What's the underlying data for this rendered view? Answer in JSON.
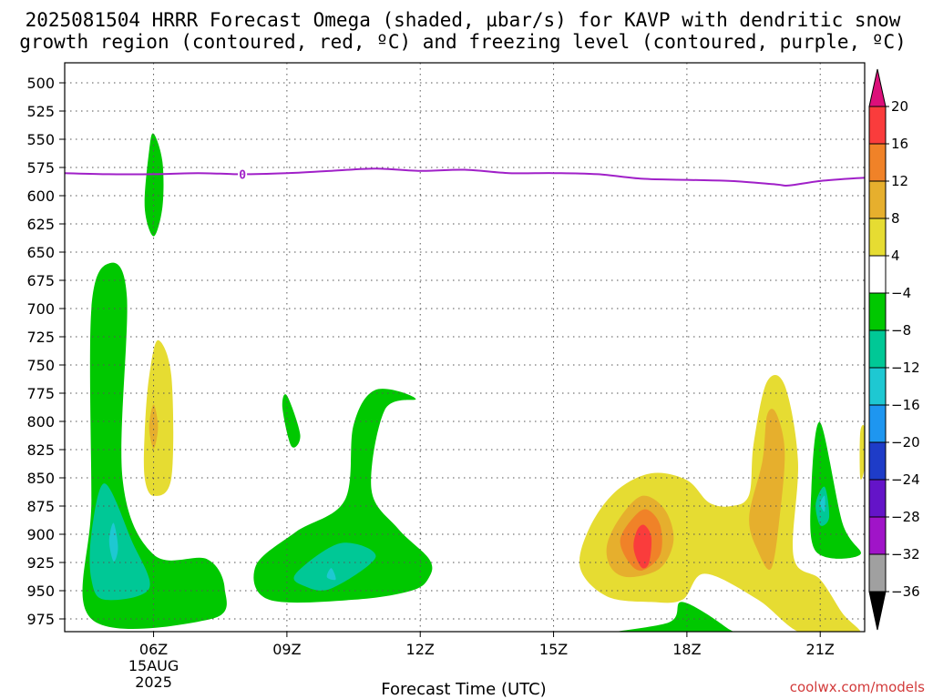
{
  "chart_data": {
    "type": "contour",
    "title_line1": "2025081504 HRRR Forecast Omega (shaded, µbar/s) for KAVP with dendritic snow",
    "title_line2": "growth region (contoured, red, ºC) and freezing level (contoured, purple, ºC)",
    "xlabel": "Forecast Time (UTC)",
    "x_ticks": [
      {
        "hour": 6,
        "label": "06Z",
        "sub1": "15AUG",
        "sub2": "2025"
      },
      {
        "hour": 9,
        "label": "09Z"
      },
      {
        "hour": 12,
        "label": "12Z"
      },
      {
        "hour": 15,
        "label": "15Z"
      },
      {
        "hour": 18,
        "label": "18Z"
      },
      {
        "hour": 21,
        "label": "21Z"
      }
    ],
    "xlim_hours": [
      4,
      22
    ],
    "y_ticks": [
      500,
      525,
      550,
      575,
      600,
      625,
      650,
      675,
      700,
      725,
      750,
      775,
      800,
      825,
      850,
      875,
      900,
      925,
      950,
      975
    ],
    "ylim_hpa": [
      487,
      990
    ],
    "grid": true,
    "freezing_level": {
      "label": "0",
      "hours": [
        4,
        5,
        6,
        7,
        8,
        9,
        10,
        11,
        12,
        13,
        14,
        15,
        16,
        17,
        18,
        19,
        20,
        20.3,
        21,
        22
      ],
      "pressure_hpa": [
        580,
        581,
        581,
        580,
        581,
        580,
        578,
        576,
        578,
        577,
        580,
        580,
        581,
        585,
        586,
        587,
        590,
        591,
        587,
        584
      ]
    },
    "omega_regions": [
      {
        "name": "green",
        "value_range": [
          -8,
          -4
        ],
        "color": "#00c800",
        "pts": [
          [
            4.6,
            975
          ],
          [
            4.6,
            870
          ],
          [
            4.6,
            700
          ],
          [
            5.0,
            660
          ],
          [
            5.4,
            690
          ],
          [
            5.3,
            850
          ],
          [
            6.0,
            918
          ],
          [
            7.2,
            922
          ],
          [
            7.6,
            948
          ],
          [
            7.3,
            975
          ]
        ]
      },
      {
        "name": "green",
        "value_range": [
          -8,
          -4
        ],
        "color": "#00c800",
        "pts": [
          [
            5.9,
            560
          ],
          [
            6.0,
            545
          ],
          [
            6.2,
            570
          ],
          [
            6.2,
            610
          ],
          [
            6.0,
            636
          ],
          [
            5.8,
            610
          ]
        ]
      },
      {
        "name": "green",
        "value_range": [
          -8,
          -4
        ],
        "color": "#00c800",
        "pts": [
          [
            8.9,
            788
          ],
          [
            9.0,
            777
          ],
          [
            9.3,
            812
          ],
          [
            9.1,
            822
          ]
        ]
      },
      {
        "name": "green",
        "value_range": [
          -8,
          -4
        ],
        "color": "#00c800",
        "pts": [
          [
            8.3,
            928
          ],
          [
            9.2,
            898
          ],
          [
            10.3,
            870
          ],
          [
            10.5,
            803
          ],
          [
            11.0,
            772
          ],
          [
            11.9,
            780
          ],
          [
            11.2,
            790
          ],
          [
            10.9,
            860
          ],
          [
            11.5,
            895
          ],
          [
            12.2,
            922
          ],
          [
            12.2,
            938
          ],
          [
            11.8,
            950
          ],
          [
            10.5,
            958
          ],
          [
            8.6,
            958
          ]
        ]
      },
      {
        "name": "green",
        "value_range": [
          -8,
          -4
        ],
        "color": "#00c800",
        "pts": [
          [
            16.0,
            990
          ],
          [
            17.6,
            978
          ],
          [
            17.9,
            960
          ],
          [
            18.9,
            983
          ],
          [
            18.9,
            990
          ]
        ]
      },
      {
        "name": "green",
        "value_range": [
          -8,
          -4
        ],
        "color": "#00c800",
        "pts": [
          [
            20.8,
            860
          ],
          [
            21.0,
            801
          ],
          [
            21.5,
            890
          ],
          [
            21.9,
            918
          ],
          [
            20.9,
            915
          ]
        ]
      },
      {
        "name": "teal",
        "value_range": [
          -12,
          -8
        ],
        "color": "#00c896",
        "pts": [
          [
            4.6,
            900
          ],
          [
            4.9,
            855
          ],
          [
            5.5,
            905
          ],
          [
            5.9,
            948
          ],
          [
            4.9,
            958
          ],
          [
            4.6,
            940
          ]
        ]
      },
      {
        "name": "teal",
        "value_range": [
          -12,
          -8
        ],
        "color": "#00c896",
        "pts": [
          [
            9.2,
            935
          ],
          [
            10.2,
            908
          ],
          [
            11.0,
            920
          ],
          [
            10.0,
            948
          ],
          [
            9.4,
            946
          ]
        ]
      },
      {
        "name": "teal",
        "value_range": [
          -12,
          -8
        ],
        "color": "#00c896",
        "pts": [
          [
            20.9,
            873
          ],
          [
            21.1,
            858
          ],
          [
            21.2,
            885
          ],
          [
            21.0,
            892
          ]
        ]
      },
      {
        "name": "cyan",
        "value_range": [
          -16,
          -12
        ],
        "color": "#1ec8d2",
        "pts": [
          [
            5.0,
            906
          ],
          [
            5.1,
            890
          ],
          [
            5.2,
            912
          ],
          [
            5.1,
            924
          ]
        ]
      },
      {
        "name": "cyan",
        "value_range": [
          -16,
          -12
        ],
        "color": "#1ec8d2",
        "pts": [
          [
            9.9,
            938
          ],
          [
            10.0,
            930
          ],
          [
            10.1,
            940
          ]
        ]
      },
      {
        "name": "cyan",
        "value_range": [
          -16,
          -12
        ],
        "color": "#1ec8d2",
        "pts": [
          [
            21.0,
            873
          ],
          [
            21.1,
            866
          ],
          [
            21.1,
            880
          ]
        ]
      },
      {
        "name": "yellow",
        "value_range": [
          4,
          8
        ],
        "color": "#e6dc32",
        "pts": [
          [
            5.8,
            810
          ],
          [
            5.9,
            760
          ],
          [
            6.1,
            728
          ],
          [
            6.4,
            760
          ],
          [
            6.4,
            850
          ],
          [
            6.0,
            866
          ],
          [
            5.8,
            850
          ]
        ]
      },
      {
        "name": "yellow",
        "value_range": [
          4,
          8
        ],
        "color": "#e6dc32",
        "pts": [
          [
            15.6,
            930
          ],
          [
            15.8,
            895
          ],
          [
            16.4,
            862
          ],
          [
            17.2,
            846
          ],
          [
            18.0,
            852
          ],
          [
            18.5,
            872
          ],
          [
            19.0,
            875
          ],
          [
            19.4,
            865
          ],
          [
            19.5,
            820
          ],
          [
            19.8,
            765
          ],
          [
            20.2,
            768
          ],
          [
            20.5,
            835
          ],
          [
            20.4,
            920
          ],
          [
            21.0,
            940
          ],
          [
            21.5,
            970
          ],
          [
            21.9,
            990
          ],
          [
            20.6,
            988
          ],
          [
            19.6,
            958
          ],
          [
            18.4,
            935
          ],
          [
            17.9,
            958
          ],
          [
            17.2,
            960
          ],
          [
            16.2,
            955
          ]
        ]
      },
      {
        "name": "yellow",
        "value_range": [
          4,
          8
        ],
        "color": "#e6dc32",
        "pts": [
          [
            21.9,
            810
          ],
          [
            22.0,
            806
          ],
          [
            22.0,
            840
          ],
          [
            21.9,
            850
          ]
        ]
      },
      {
        "name": "gold",
        "value_range": [
          8,
          12
        ],
        "color": "#e6af2d",
        "pts": [
          [
            5.9,
            805
          ],
          [
            6.0,
            785
          ],
          [
            6.1,
            805
          ],
          [
            6.0,
            824
          ]
        ]
      },
      {
        "name": "gold",
        "value_range": [
          8,
          12
        ],
        "color": "#e6af2d",
        "pts": [
          [
            16.2,
            910
          ],
          [
            16.5,
            885
          ],
          [
            17.0,
            866
          ],
          [
            17.5,
            878
          ],
          [
            17.7,
            905
          ],
          [
            17.4,
            930
          ],
          [
            16.7,
            938
          ],
          [
            16.3,
            930
          ]
        ]
      },
      {
        "name": "gold",
        "value_range": [
          8,
          12
        ],
        "color": "#e6af2d",
        "pts": [
          [
            19.4,
            885
          ],
          [
            19.7,
            835
          ],
          [
            19.8,
            795
          ],
          [
            20.0,
            792
          ],
          [
            20.2,
            825
          ],
          [
            20.1,
            880
          ],
          [
            19.9,
            930
          ],
          [
            19.6,
            915
          ]
        ]
      },
      {
        "name": "orange",
        "value_range": [
          12,
          16
        ],
        "color": "#f08228",
        "pts": [
          [
            16.5,
            905
          ],
          [
            16.8,
            885
          ],
          [
            17.1,
            878
          ],
          [
            17.4,
            892
          ],
          [
            17.4,
            918
          ],
          [
            17.0,
            932
          ],
          [
            16.7,
            925
          ]
        ]
      },
      {
        "name": "red",
        "value_range": [
          16,
          20
        ],
        "color": "#fa3c3c",
        "pts": [
          [
            16.8,
            908
          ],
          [
            16.9,
            895
          ],
          [
            17.05,
            892
          ],
          [
            17.2,
            903
          ],
          [
            17.15,
            925
          ],
          [
            17.0,
            930
          ],
          [
            16.85,
            920
          ]
        ]
      }
    ],
    "ground": {
      "color": "#a0522d",
      "pressure_hpa": 990
    },
    "colorbar": {
      "levels": [
        "20",
        "16",
        "12",
        "8",
        "4",
        "−4",
        "−8",
        "−12",
        "−16",
        "−20",
        "−24",
        "−28",
        "−32",
        "−36"
      ],
      "colors": [
        "#fa3c3c",
        "#f08228",
        "#e6af2d",
        "#e6dc32",
        "#ffffff",
        "#00c800",
        "#00c896",
        "#1ec8d2",
        "#1e96f0",
        "#1e3cc8",
        "#6414c8",
        "#a014c8",
        "#a0a0a0"
      ],
      "top_arrow_color": "#dc0f7a",
      "bottom_arrow_color": "#000000"
    },
    "credit": "coolwx.com/models"
  }
}
